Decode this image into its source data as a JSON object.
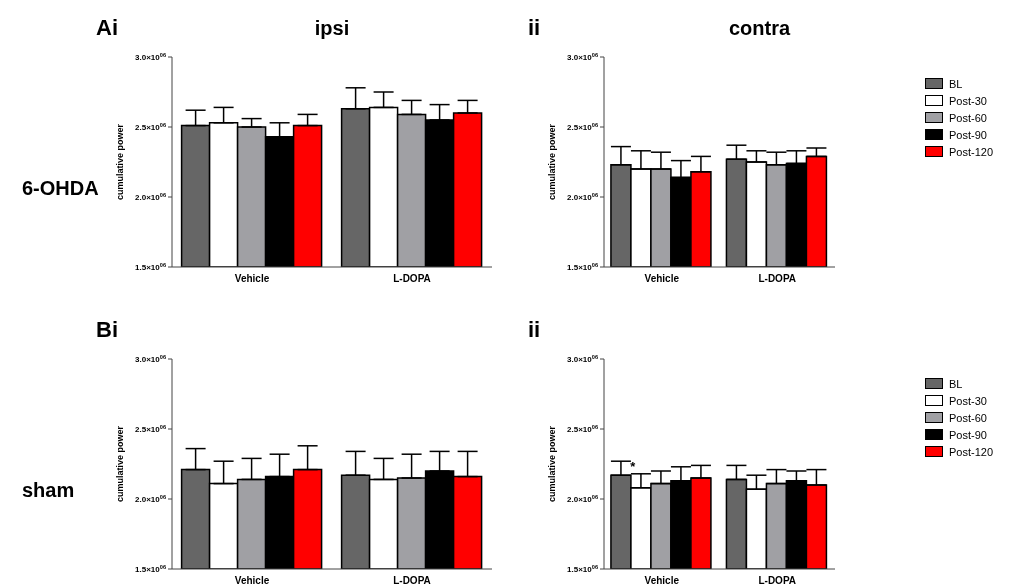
{
  "chart_data": [
    {
      "type": "bar",
      "title": "ipsi",
      "annotations": [
        "Ai",
        "6-OHDA"
      ],
      "ylabel": "cumulative power",
      "categories": [
        "Vehicle",
        "L-DOPA"
      ],
      "ylim": [
        1500000,
        3000000
      ],
      "yticks": [
        {
          "value": 1500000,
          "label": "1.5×10$^{06}$"
        },
        {
          "value": 2000000,
          "label": "2.0×10$^{06}$"
        },
        {
          "value": 2500000,
          "label": "2.5×10$^{06}$"
        },
        {
          "value": 3000000,
          "label": "3.0×10$^{06}$"
        }
      ],
      "grid": false,
      "legend": false,
      "series": [
        {
          "color": "#666666",
          "values": [
            2510000,
            2630000
          ],
          "errors": [
            [
              2510000,
              2620000
            ],
            [
              2630000,
              2780000
            ]
          ]
        },
        {
          "color": "#ffffff",
          "values": [
            2530000,
            2640000
          ],
          "errors": [
            [
              2530000,
              2640000
            ],
            [
              2640000,
              2750000
            ]
          ]
        },
        {
          "color": "#a0a0a4",
          "values": [
            2500000,
            2590000
          ],
          "errors": [
            [
              2500000,
              2560000
            ],
            [
              2590000,
              2690000
            ]
          ]
        },
        {
          "color": "#000000",
          "values": [
            2430000,
            2550000
          ],
          "errors": [
            [
              2430000,
              2530000
            ],
            [
              2550000,
              2660000
            ]
          ]
        },
        {
          "color": "#ff0000",
          "values": [
            2510000,
            2600000
          ],
          "errors": [
            [
              2510000,
              2590000
            ],
            [
              2600000,
              2690000
            ]
          ]
        }
      ]
    },
    {
      "type": "bar",
      "title": "contra",
      "annotations": [
        "ii"
      ],
      "ylabel": "cumulative power",
      "categories": [
        "Vehicle",
        "L-DOPA"
      ],
      "ylim": [
        1500000,
        3000000
      ],
      "yticks": [
        {
          "value": 1500000,
          "label": "1.5×10$^{06}$"
        },
        {
          "value": 2000000,
          "label": "2.0×10$^{06}$"
        },
        {
          "value": 2500000,
          "label": "2.5×10$^{06}$"
        },
        {
          "value": 3000000,
          "label": "3.0×10$^{06}$"
        }
      ],
      "grid": false,
      "legend": "right",
      "series": [
        {
          "name": "BL",
          "color": "#666666",
          "values": [
            2230000,
            2270000
          ],
          "errors": [
            [
              2230000,
              2360000
            ],
            [
              2270000,
              2370000
            ]
          ]
        },
        {
          "name": "Post-30",
          "color": "#ffffff",
          "values": [
            2200000,
            2250000
          ],
          "errors": [
            [
              2200000,
              2330000
            ],
            [
              2250000,
              2330000
            ]
          ]
        },
        {
          "name": "Post-60",
          "color": "#a0a0a4",
          "values": [
            2200000,
            2230000
          ],
          "errors": [
            [
              2200000,
              2320000
            ],
            [
              2230000,
              2320000
            ]
          ]
        },
        {
          "name": "Post-90",
          "color": "#000000",
          "values": [
            2140000,
            2240000
          ],
          "errors": [
            [
              2140000,
              2260000
            ],
            [
              2240000,
              2330000
            ]
          ]
        },
        {
          "name": "Post-120",
          "color": "#ff0000",
          "values": [
            2180000,
            2290000
          ],
          "errors": [
            [
              2180000,
              2290000
            ],
            [
              2290000,
              2350000
            ]
          ]
        }
      ]
    },
    {
      "type": "bar",
      "annotations": [
        "Bi",
        "sham"
      ],
      "ylabel": "cumulative power",
      "categories": [
        "Vehicle",
        "L-DOPA"
      ],
      "ylim": [
        1500000,
        3000000
      ],
      "yticks": [
        {
          "value": 1500000,
          "label": "1.5×10$^{06}$"
        },
        {
          "value": 2000000,
          "label": "2.0×10$^{06}$"
        },
        {
          "value": 2500000,
          "label": "2.5×10$^{06}$"
        },
        {
          "value": 3000000,
          "label": "3.0×10$^{06}$"
        }
      ],
      "grid": false,
      "legend": false,
      "series": [
        {
          "color": "#666666",
          "values": [
            2210000,
            2170000
          ],
          "errors": [
            [
              2210000,
              2360000
            ],
            [
              2170000,
              2340000
            ]
          ]
        },
        {
          "color": "#ffffff",
          "values": [
            2110000,
            2140000
          ],
          "errors": [
            [
              2110000,
              2270000
            ],
            [
              2140000,
              2290000
            ]
          ]
        },
        {
          "color": "#a0a0a4",
          "values": [
            2140000,
            2150000
          ],
          "errors": [
            [
              2140000,
              2290000
            ],
            [
              2150000,
              2320000
            ]
          ]
        },
        {
          "color": "#000000",
          "values": [
            2160000,
            2200000
          ],
          "errors": [
            [
              2160000,
              2320000
            ],
            [
              2200000,
              2340000
            ]
          ]
        },
        {
          "color": "#ff0000",
          "values": [
            2210000,
            2160000
          ],
          "errors": [
            [
              2210000,
              2380000
            ],
            [
              2160000,
              2340000
            ]
          ]
        }
      ]
    },
    {
      "type": "bar",
      "annotations": [
        "ii",
        "*"
      ],
      "ylabel": "cumulative power",
      "categories": [
        "Vehicle",
        "L-DOPA"
      ],
      "ylim": [
        1500000,
        3000000
      ],
      "yticks": [
        {
          "value": 1500000,
          "label": "1.5×10$^{06}$"
        },
        {
          "value": 2000000,
          "label": "2.0×10$^{06}$"
        },
        {
          "value": 2500000,
          "label": "2.5×10$^{06}$"
        },
        {
          "value": 3000000,
          "label": "3.0×10$^{06}$"
        }
      ],
      "grid": false,
      "legend": "right",
      "series": [
        {
          "name": "BL",
          "color": "#666666",
          "values": [
            2170000,
            2140000
          ],
          "errors": [
            [
              2170000,
              2270000
            ],
            [
              2140000,
              2240000
            ]
          ]
        },
        {
          "name": "Post-30",
          "color": "#ffffff",
          "values": [
            2080000,
            2070000
          ],
          "errors": [
            [
              2080000,
              2180000
            ],
            [
              2070000,
              2170000
            ]
          ]
        },
        {
          "name": "Post-60",
          "color": "#a0a0a4",
          "values": [
            2110000,
            2110000
          ],
          "errors": [
            [
              2110000,
              2200000
            ],
            [
              2110000,
              2210000
            ]
          ]
        },
        {
          "name": "Post-90",
          "color": "#000000",
          "values": [
            2130000,
            2130000
          ],
          "errors": [
            [
              2130000,
              2230000
            ],
            [
              2130000,
              2200000
            ]
          ]
        },
        {
          "name": "Post-120",
          "color": "#ff0000",
          "values": [
            2150000,
            2100000
          ],
          "errors": [
            [
              2150000,
              2240000
            ],
            [
              2100000,
              2210000
            ]
          ]
        }
      ]
    }
  ]
}
